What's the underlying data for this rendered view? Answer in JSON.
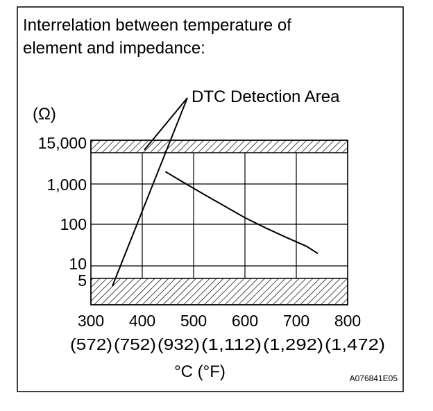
{
  "chart_data": {
    "type": "line",
    "title_lines": [
      "Interrelation between temperature of",
      "element and impedance:"
    ],
    "yunit": "(Ω)",
    "xlabel": "°C (°F)",
    "x_ticks": [
      {
        "c": "300",
        "f": "(572)"
      },
      {
        "c": "400",
        "f": "(752)"
      },
      {
        "c": "500",
        "f": "(932)"
      },
      {
        "c": "600",
        "f": "(1,112)"
      },
      {
        "c": "700",
        "f": "(1,292)"
      },
      {
        "c": "800",
        "f": "(1,472)"
      }
    ],
    "y_ticks": [
      "15,000",
      "1,000",
      "100",
      "10",
      "5"
    ],
    "y_scale": "log",
    "xlim": [
      300,
      800
    ],
    "grid": true,
    "series": [
      {
        "x": [
          445,
          480,
          520,
          560,
          600,
          640,
          680,
          720,
          742
        ],
        "y": [
          2000,
          1100,
          560,
          290,
          150,
          85,
          50,
          30,
          20
        ]
      }
    ],
    "detection_areas": [
      {
        "y_from": 15000,
        "y_to": 22000
      },
      {
        "y_from": 0,
        "y_to": 5
      }
    ],
    "annotation": "DTC Detection Area",
    "figure_code": "A076841E05"
  }
}
